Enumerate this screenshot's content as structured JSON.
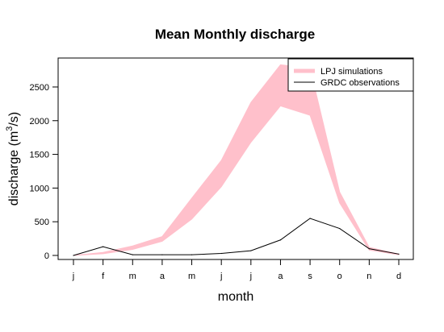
{
  "chart_data": {
    "type": "area",
    "title": "Mean Monthly discharge",
    "xlabel": "month",
    "ylabel_main": "discharge (m",
    "ylabel_sup": "3",
    "ylabel_tail": "/s)",
    "categories": [
      "j",
      "f",
      "m",
      "a",
      "m",
      "j",
      "j",
      "a",
      "s",
      "o",
      "n",
      "d"
    ],
    "ylim": [
      -60,
      2930
    ],
    "yticks": [
      0,
      500,
      1000,
      1500,
      2000,
      2500
    ],
    "series": [
      {
        "name": "LPJ simulations",
        "kind": "band",
        "color": "#FFC0CB",
        "lower": [
          0,
          25,
          90,
          210,
          540,
          1020,
          1680,
          2220,
          2080,
          780,
          80,
          10
        ],
        "upper": [
          0,
          45,
          140,
          280,
          850,
          1410,
          2270,
          2830,
          2780,
          940,
          120,
          20
        ]
      },
      {
        "name": "GRDC observations",
        "kind": "line",
        "color": "#000000",
        "values": [
          0,
          130,
          10,
          10,
          10,
          30,
          70,
          230,
          550,
          400,
          100,
          20
        ]
      }
    ],
    "legend_position": "top-right",
    "grid": false
  }
}
